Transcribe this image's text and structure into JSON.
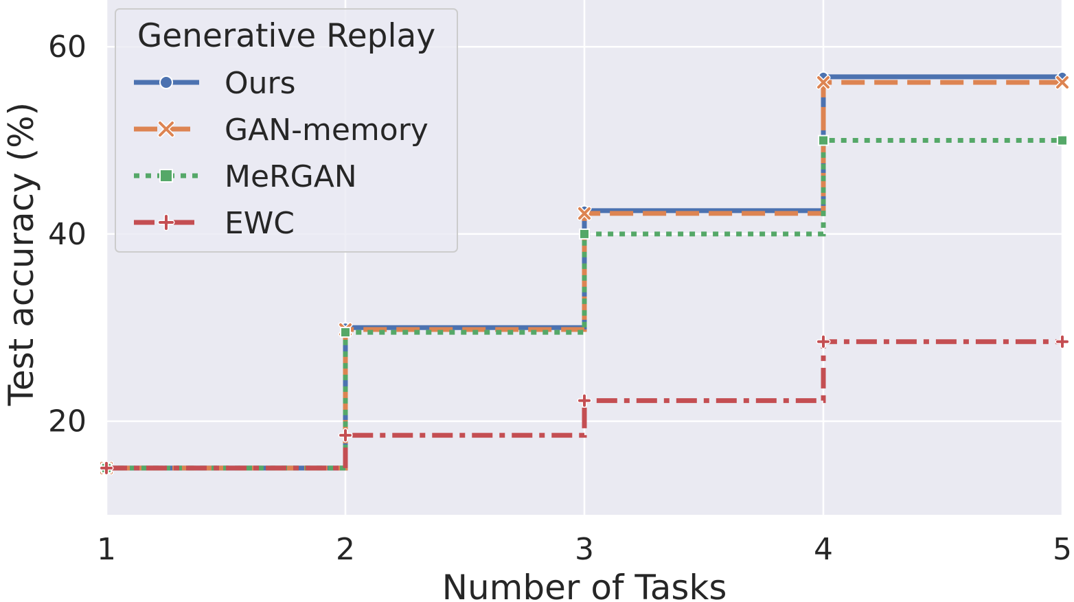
{
  "chart_data": {
    "type": "line",
    "step": "post",
    "x": [
      1,
      2,
      3,
      4,
      5
    ],
    "xlabel": "Number of Tasks",
    "ylabel": "Test accuracy (%)",
    "xlim": [
      1,
      5
    ],
    "ylim": [
      10,
      65
    ],
    "xticks": [
      1,
      2,
      3,
      4,
      5
    ],
    "yticks": [
      20,
      40,
      60
    ],
    "grid": true,
    "legend": {
      "title": "Generative Replay",
      "placement": "top-left"
    },
    "series": [
      {
        "name": "Ours",
        "values": [
          15.0,
          30.0,
          42.5,
          56.8,
          56.8
        ],
        "color": "#4c72b0",
        "style": "solid",
        "marker": "circle"
      },
      {
        "name": "GAN-memory",
        "values": [
          15.0,
          29.8,
          42.2,
          56.2,
          56.2
        ],
        "color": "#dd8452",
        "style": "dashed",
        "marker": "x"
      },
      {
        "name": "MeRGAN",
        "values": [
          15.0,
          29.5,
          40.0,
          50.0,
          50.0
        ],
        "color": "#55a868",
        "style": "dotted",
        "marker": "square"
      },
      {
        "name": "EWC",
        "values": [
          15.0,
          18.5,
          22.2,
          28.5,
          28.5
        ],
        "color": "#c44e52",
        "style": "dashdot",
        "marker": "plus"
      }
    ]
  }
}
